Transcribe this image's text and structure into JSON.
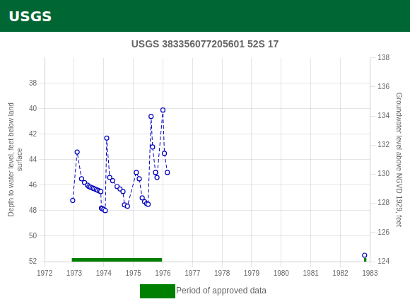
{
  "chart_data": {
    "type": "line",
    "title": "USGS 383356077205601 52S 17",
    "annotations": [
      "USGS"
    ],
    "xlabel": null,
    "ylabel": "Depth to water level, feet below land\nsurface",
    "y2label": "Groundwater level above NGVD 1929, feet",
    "xlim": [
      1972,
      1983
    ],
    "xticks": [
      1972,
      1973,
      1974,
      1975,
      1976,
      1977,
      1978,
      1979,
      1980,
      1981,
      1982,
      1983
    ],
    "ylim": [
      52,
      36
    ],
    "yticks": [
      38,
      40,
      42,
      44,
      46,
      48,
      50,
      52
    ],
    "y2lim": [
      124,
      138
    ],
    "y2ticks": [
      124,
      126,
      128,
      130,
      132,
      134,
      136,
      138
    ],
    "grid": true,
    "legend": "bottom",
    "series": [
      {
        "color": "#0000bb",
        "marker": "circle",
        "line_style": "dashed",
        "x": [
          1972.95,
          1973.1,
          1973.25,
          1973.35,
          1973.45,
          1973.5,
          1973.55,
          1973.6,
          1973.65,
          1973.7,
          1973.75,
          1973.8,
          1973.85,
          1973.9,
          1973.92,
          1973.95,
          1974.0,
          1974.05,
          1974.1,
          1974.2,
          1974.3,
          1974.45,
          1974.55,
          1974.65,
          1974.7,
          1974.8,
          1975.1,
          1975.2,
          1975.3,
          1975.38,
          1975.45,
          1975.5,
          1975.6,
          1975.65,
          1975.75,
          1975.8,
          1976.0,
          1976.05,
          1976.15
        ],
        "values": [
          47.2,
          43.4,
          45.5,
          45.8,
          46.0,
          46.1,
          46.15,
          46.2,
          46.25,
          46.3,
          46.35,
          46.4,
          46.45,
          46.5,
          47.8,
          47.85,
          47.9,
          48.0,
          42.3,
          45.4,
          45.65,
          46.1,
          46.3,
          46.5,
          47.55,
          47.65,
          45.0,
          45.5,
          47.0,
          47.3,
          47.45,
          47.5,
          40.6,
          43.0,
          45.0,
          45.4,
          40.1,
          43.5,
          45.0
        ]
      },
      {
        "color": "#0000bb",
        "marker": "circle",
        "line_style": "dashed",
        "x": [
          1982.82
        ],
        "values": [
          51.5
        ]
      },
      {
        "name": "Period of approved data",
        "type": "bar",
        "color": "#008000",
        "periods": [
          {
            "x": 1972.92,
            "width": 3.05
          },
          {
            "x": 1982.8,
            "width": 0.08
          }
        ]
      }
    ]
  }
}
